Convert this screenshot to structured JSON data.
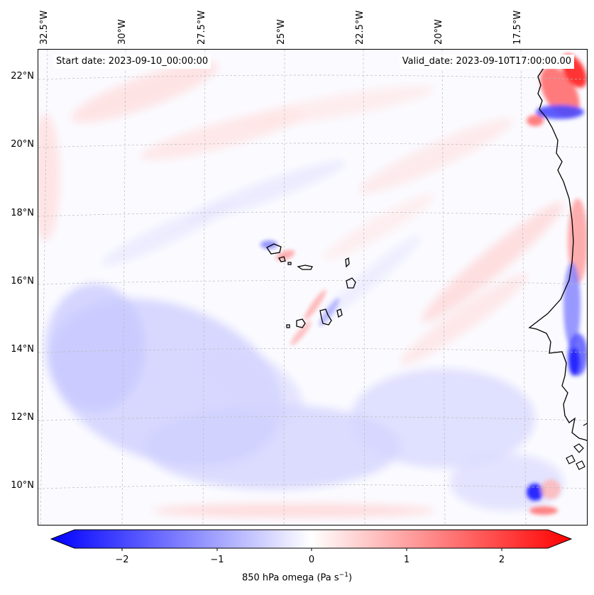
{
  "header": {
    "start_date": "Start date: 2023-09-10_00:00:00",
    "valid_date": "Valid_date: 2023-09-10T17:00:00.00"
  },
  "map": {
    "longitude_labels": [
      "32.5°W",
      "30°W",
      "27.5°W",
      "25°W",
      "22.5°W",
      "20°W",
      "17.5°W"
    ],
    "latitude_labels": [
      "22°N",
      "20°N",
      "18°N",
      "16°N",
      "14°N",
      "12°N",
      "10°N"
    ],
    "islands": [
      "santo-antao",
      "sao-vicente",
      "santa-luzia",
      "sao-nicolau",
      "sal",
      "boa-vista",
      "brava",
      "fogo",
      "santiago",
      "maio"
    ],
    "colormap": [
      "#0000ff",
      "#ffffff",
      "#ff0000"
    ],
    "features": [
      "coastline",
      "gridlines",
      "filled-contours"
    ]
  },
  "colorbar": {
    "label": "850 hPa omega (Pa s",
    "label_exponent": "−1",
    "label_close": ")",
    "ticks": [
      "−2",
      "−1",
      "0",
      "1",
      "2"
    ],
    "range": [
      -2.6,
      2.6
    ],
    "extend": "both"
  }
}
